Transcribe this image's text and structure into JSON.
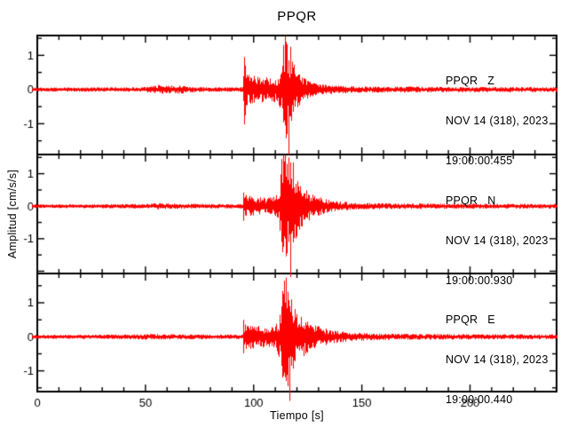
{
  "title": "PPQR",
  "axes": {
    "xlabel": "Tiempo [s]",
    "ylabel": "Amplitud [cm/s/s]"
  },
  "chart_data": {
    "type": "line",
    "subtype": "seismogram-3-component",
    "trace_color": "#ff0000",
    "axis_color": "#000000",
    "background": "#ffffff",
    "grid": false,
    "xlim": [
      0,
      240
    ],
    "x_major_ticks": [
      0,
      50,
      100,
      150,
      200
    ],
    "x_minor_step": 10,
    "y_major_ticks": [
      -1,
      0,
      1
    ],
    "y_minor_step": 0.5,
    "panels": [
      {
        "station": "PPQR",
        "component": "Z",
        "label": "PPQR   Z",
        "date": "NOV 14 (318), 2023",
        "time": "19:00:00.455",
        "ylim": [
          -1.9,
          1.58
        ],
        "envelope": [
          [
            0,
            0.055
          ],
          [
            20,
            0.06
          ],
          [
            45,
            0.065
          ],
          [
            52,
            0.09
          ],
          [
            56,
            0.13
          ],
          [
            60,
            0.11
          ],
          [
            64,
            0.13
          ],
          [
            68,
            0.11
          ],
          [
            72,
            0.08
          ],
          [
            80,
            0.065
          ],
          [
            93,
            0.065
          ],
          [
            94.8,
            0.08
          ],
          [
            95.2,
            0.6
          ],
          [
            96,
            0.5
          ],
          [
            98,
            0.42
          ],
          [
            103,
            0.38
          ],
          [
            108,
            0.34
          ],
          [
            111,
            0.38
          ],
          [
            112.5,
            0.6
          ],
          [
            113.5,
            1.0
          ],
          [
            114.5,
            1.5
          ],
          [
            115.5,
            1.35
          ],
          [
            116.5,
            1.05
          ],
          [
            118,
            0.8
          ],
          [
            120,
            0.55
          ],
          [
            122,
            0.38
          ],
          [
            125,
            0.25
          ],
          [
            128,
            0.18
          ],
          [
            132,
            0.14
          ],
          [
            140,
            0.11
          ],
          [
            150,
            0.09
          ],
          [
            165,
            0.085
          ],
          [
            200,
            0.075
          ],
          [
            240,
            0.07
          ]
        ],
        "spikes": [
          [
            95.4,
            0.95,
            -1.02
          ],
          [
            96.2,
            0.7,
            -0.75
          ],
          [
            113.8,
            1.3,
            -0.8
          ],
          [
            114.6,
            1.56,
            -1.05
          ],
          [
            115.4,
            1.15,
            -1.3
          ],
          [
            116.2,
            0.85,
            -1.9
          ],
          [
            117.0,
            1.25,
            -0.7
          ]
        ]
      },
      {
        "station": "PPQR",
        "component": "N",
        "label": "PPQR   N",
        "date": "NOV 14 (318), 2023",
        "time": "19:00:00.930",
        "ylim": [
          -2.07,
          1.59
        ],
        "envelope": [
          [
            0,
            0.055
          ],
          [
            30,
            0.06
          ],
          [
            50,
            0.07
          ],
          [
            56,
            0.095
          ],
          [
            62,
            0.085
          ],
          [
            70,
            0.075
          ],
          [
            85,
            0.065
          ],
          [
            93,
            0.065
          ],
          [
            94.8,
            0.075
          ],
          [
            95.2,
            0.4
          ],
          [
            97,
            0.33
          ],
          [
            101,
            0.28
          ],
          [
            106,
            0.26
          ],
          [
            110,
            0.3
          ],
          [
            111.5,
            0.5
          ],
          [
            112.5,
            1.05
          ],
          [
            113.5,
            1.55
          ],
          [
            114.5,
            1.62
          ],
          [
            115.5,
            1.45
          ],
          [
            116.5,
            1.5
          ],
          [
            117.5,
            1.35
          ],
          [
            119,
            1.05
          ],
          [
            121,
            0.75
          ],
          [
            124,
            0.5
          ],
          [
            128,
            0.33
          ],
          [
            133,
            0.22
          ],
          [
            140,
            0.14
          ],
          [
            150,
            0.1
          ],
          [
            165,
            0.085
          ],
          [
            200,
            0.075
          ],
          [
            240,
            0.07
          ]
        ],
        "spikes": [
          [
            95.3,
            0.42,
            -0.45
          ],
          [
            112.8,
            1.45,
            -1.1
          ],
          [
            113.6,
            1.58,
            -1.25
          ],
          [
            114.4,
            1.58,
            -1.0
          ],
          [
            115.2,
            1.3,
            -1.45
          ],
          [
            116.0,
            1.5,
            -1.1
          ],
          [
            116.9,
            0.85,
            -2.18
          ],
          [
            118.0,
            1.35,
            -0.9
          ]
        ]
      },
      {
        "station": "PPQR",
        "component": "E",
        "label": "PPQR   E",
        "date": "NOV 14 (318), 2023",
        "time": "19:00:00.440",
        "ylim": [
          -1.61,
          1.86
        ],
        "envelope": [
          [
            0,
            0.055
          ],
          [
            25,
            0.06
          ],
          [
            40,
            0.07
          ],
          [
            55,
            0.085
          ],
          [
            65,
            0.075
          ],
          [
            80,
            0.065
          ],
          [
            93,
            0.065
          ],
          [
            94.8,
            0.075
          ],
          [
            95.2,
            0.45
          ],
          [
            97,
            0.38
          ],
          [
            102,
            0.32
          ],
          [
            107,
            0.3
          ],
          [
            110,
            0.34
          ],
          [
            112,
            0.65
          ],
          [
            113,
            1.15
          ],
          [
            114,
            1.55
          ],
          [
            115,
            1.6
          ],
          [
            116,
            1.25
          ],
          [
            117,
            1.05
          ],
          [
            119,
            0.85
          ],
          [
            122,
            0.62
          ],
          [
            126,
            0.42
          ],
          [
            131,
            0.28
          ],
          [
            137,
            0.19
          ],
          [
            144,
            0.13
          ],
          [
            154,
            0.1
          ],
          [
            170,
            0.085
          ],
          [
            205,
            0.075
          ],
          [
            240,
            0.07
          ]
        ],
        "spikes": [
          [
            95.3,
            0.5,
            -0.48
          ],
          [
            113.2,
            1.35,
            -1.2
          ],
          [
            114.0,
            1.65,
            -1.05
          ],
          [
            114.8,
            1.74,
            -1.3
          ],
          [
            115.6,
            1.2,
            -1.45
          ],
          [
            116.4,
            0.9,
            -1.88
          ],
          [
            117.5,
            1.1,
            -0.85
          ]
        ]
      }
    ]
  }
}
